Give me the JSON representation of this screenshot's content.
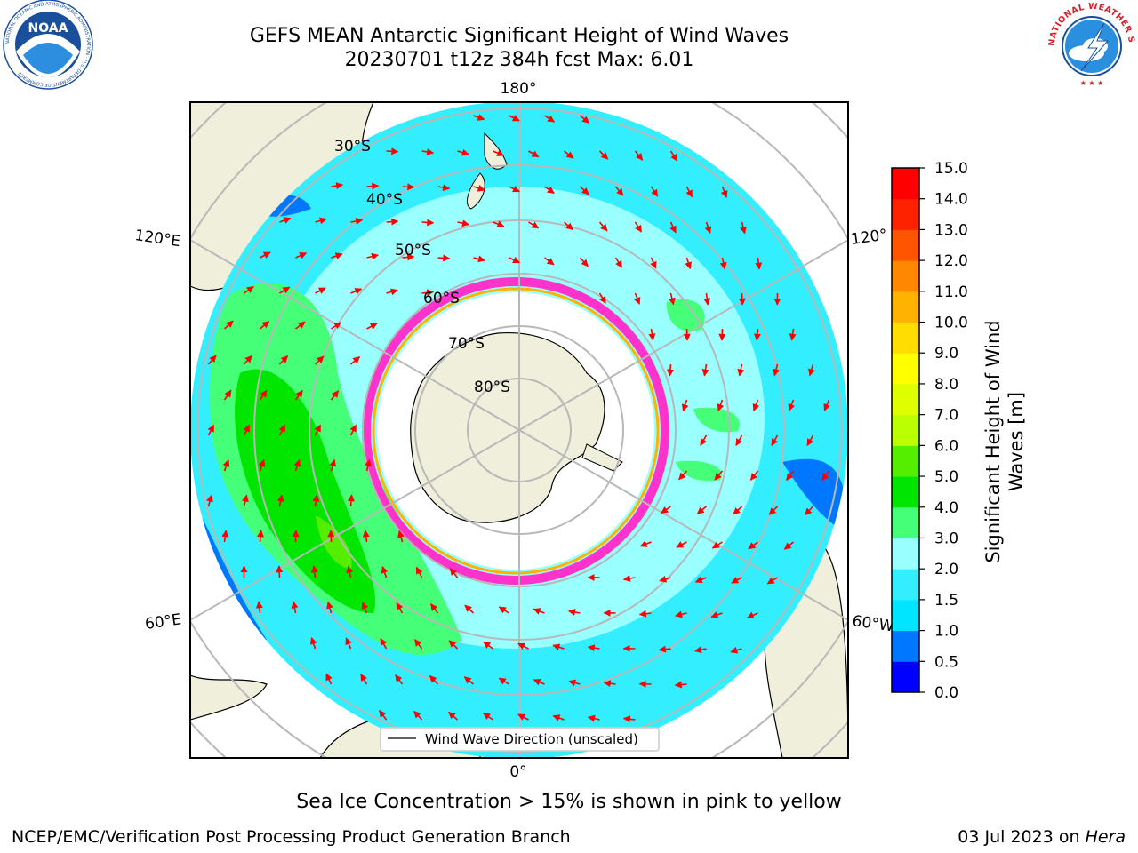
{
  "header": {
    "title_line1": "GEFS MEAN Antarctic Significant Height of Wind Waves",
    "title_line2": "20230701 t12z 384h fcst   Max: 6.01"
  },
  "logos": {
    "left": {
      "text": "NOAA",
      "ring_text": "NATIONAL OCEANIC AND ATMOSPHERIC ADMINISTRATION · U.S. DEPARTMENT OF COMMERCE",
      "color": "#1a4f9c"
    },
    "right": {
      "ring_text": "NATIONAL WEATHER SERVICE",
      "color": "#d6202a"
    }
  },
  "map": {
    "projection": "south-polar-stereographic",
    "latitude_labels": [
      "30°S",
      "40°S",
      "50°S",
      "60°S",
      "70°S",
      "80°S"
    ],
    "longitude_labels": {
      "top": "180°",
      "bottom": "0°",
      "upper_left": "120°E",
      "lower_left": "60°E",
      "upper_right": "120°",
      "lower_right": "60°W"
    },
    "legend_label": "Wind Wave Direction (unscaled)",
    "land_color": "#efefdb",
    "ice_edge_color": "#ff33cc",
    "arrow_color": "#ff0000"
  },
  "colorbar": {
    "title": "Significant Height of Wind Waves [m]",
    "ticks": [
      "0.0",
      "0.5",
      "1.0",
      "1.5",
      "2.0",
      "3.0",
      "4.0",
      "5.0",
      "6.0",
      "7.0",
      "8.0",
      "9.0",
      "10.0",
      "11.0",
      "12.0",
      "13.0",
      "14.0",
      "15.0"
    ],
    "colors": [
      "#0000ff",
      "#0077ff",
      "#00e5ff",
      "#33eeff",
      "#99ffff",
      "#44ff77",
      "#00e600",
      "#55ee00",
      "#bbff00",
      "#ddff00",
      "#ffff00",
      "#ffdd00",
      "#ffb300",
      "#ff8800",
      "#ff5500",
      "#ff2200",
      "#ff0000"
    ]
  },
  "note": "Sea Ice Concentration > 15% is shown in pink to yellow",
  "footer": {
    "left": "NCEP/EMC/Verification Post Processing Product Generation Branch",
    "right_prefix": "03 Jul 2023 on ",
    "right_machine": "Hera"
  }
}
